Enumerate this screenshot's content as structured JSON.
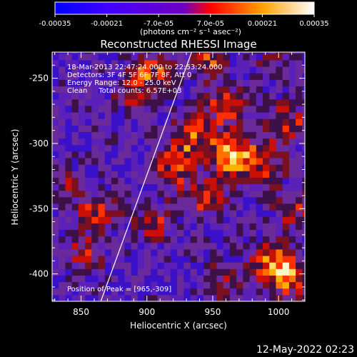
{
  "colorbar": {
    "ticks": [
      "-0.00035",
      "-0.00021",
      "-7.0e-05",
      "7.0e-05",
      "0.00021",
      "0.00035"
    ],
    "tick_values": [
      -0.00035,
      -0.00021,
      -7e-05,
      7e-05,
      0.00021,
      0.00035
    ],
    "min": -0.00035,
    "max": 0.00035,
    "units_label": "(photons cm⁻² s⁻¹ asec⁻²)",
    "colors": [
      "#0000ff",
      "#7000ff",
      "#ff0000",
      "#ffa000",
      "#ffffff"
    ]
  },
  "chart_data": {
    "type": "heatmap",
    "title": "Reconstructed RHESSI Image",
    "xlabel": "Heliocentric X (arcsec)",
    "ylabel": "Heliocentric Y (arcsec)",
    "xlim": [
      828,
      1020
    ],
    "ylim": [
      -421,
      -230
    ],
    "x_ticks": [
      850,
      900,
      950,
      1000
    ],
    "x_tick_labels": [
      "850",
      "900",
      "950",
      "1000"
    ],
    "y_ticks": [
      -250,
      -300,
      -350,
      -400
    ],
    "y_tick_labels": [
      "-250",
      "-300",
      "-350",
      "-400"
    ],
    "annotations": [
      "18-Mar-2013 22:47:24.000 to 22:53:24.000",
      "Detectors: 3F 4F 5F 6F 7F 8F, Att 0",
      "Energy Range: 12.0 - 25.0 keV",
      "Clean     Total counts: 6.57E+03"
    ],
    "peak_label": "Position of Peak = [965,-309]",
    "peak": [
      965,
      -309
    ],
    "limb_line": [
      [
        865,
        -421
      ],
      [
        934,
        -230
      ]
    ],
    "hot_spots": [
      {
        "x": 965,
        "y": -309,
        "amp": 1.0
      },
      {
        "x": 935,
        "y": -295,
        "amp": 0.7
      },
      {
        "x": 960,
        "y": -272,
        "amp": 0.65
      },
      {
        "x": 945,
        "y": -340,
        "amp": 0.6
      },
      {
        "x": 920,
        "y": -318,
        "amp": 0.65
      },
      {
        "x": 990,
        "y": -318,
        "amp": 0.55
      },
      {
        "x": 1008,
        "y": -285,
        "amp": 0.6
      },
      {
        "x": 1012,
        "y": -350,
        "amp": 0.5
      },
      {
        "x": 995,
        "y": -392,
        "amp": 0.8
      },
      {
        "x": 1010,
        "y": -403,
        "amp": 0.7
      },
      {
        "x": 958,
        "y": -405,
        "amp": 0.45
      },
      {
        "x": 905,
        "y": -362,
        "amp": 0.5
      },
      {
        "x": 862,
        "y": -350,
        "amp": 0.55
      },
      {
        "x": 852,
        "y": -384,
        "amp": 0.45
      },
      {
        "x": 838,
        "y": -333,
        "amp": 0.35
      },
      {
        "x": 905,
        "y": -245,
        "amp": 0.55
      },
      {
        "x": 890,
        "y": -258,
        "amp": 0.45
      },
      {
        "x": 945,
        "y": -235,
        "amp": 0.6
      },
      {
        "x": 998,
        "y": -240,
        "amp": 0.3
      }
    ]
  },
  "footer": {
    "date": "12-May-2022 02:23"
  }
}
